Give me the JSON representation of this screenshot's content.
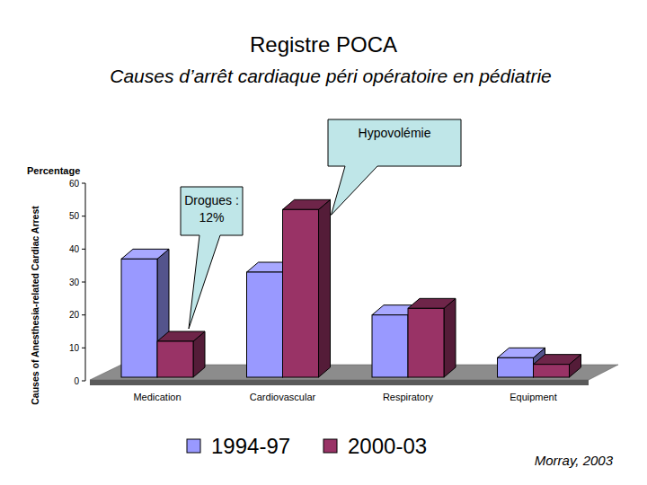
{
  "chart_data": {
    "type": "bar",
    "title": "Registre POCA",
    "subtitle": "Causes d’arrêt cardiaque péri opératoire en pédiatrie",
    "y_label": "Causes of Anesthesia-related Cardiac Arrest",
    "y_unit": "Percentage",
    "categories": [
      "Medication",
      "Cardiovascular",
      "Respiratory",
      "Equipment"
    ],
    "series": [
      {
        "name": "1994-97",
        "color": "#9999ff",
        "values": [
          37,
          33,
          20,
          7
        ]
      },
      {
        "name": "2000-03",
        "color": "#993366",
        "values": [
          12,
          52,
          22,
          5
        ]
      }
    ],
    "ylim": [
      0,
      60
    ],
    "yticks": [
      0,
      10,
      20,
      30,
      40,
      50,
      60
    ],
    "grid": false,
    "legend": "bottom",
    "annotations": [
      {
        "text": "Hypovolémie"
      },
      {
        "text": "Drogues : 12%"
      }
    ],
    "source": "Morray, 2003"
  }
}
